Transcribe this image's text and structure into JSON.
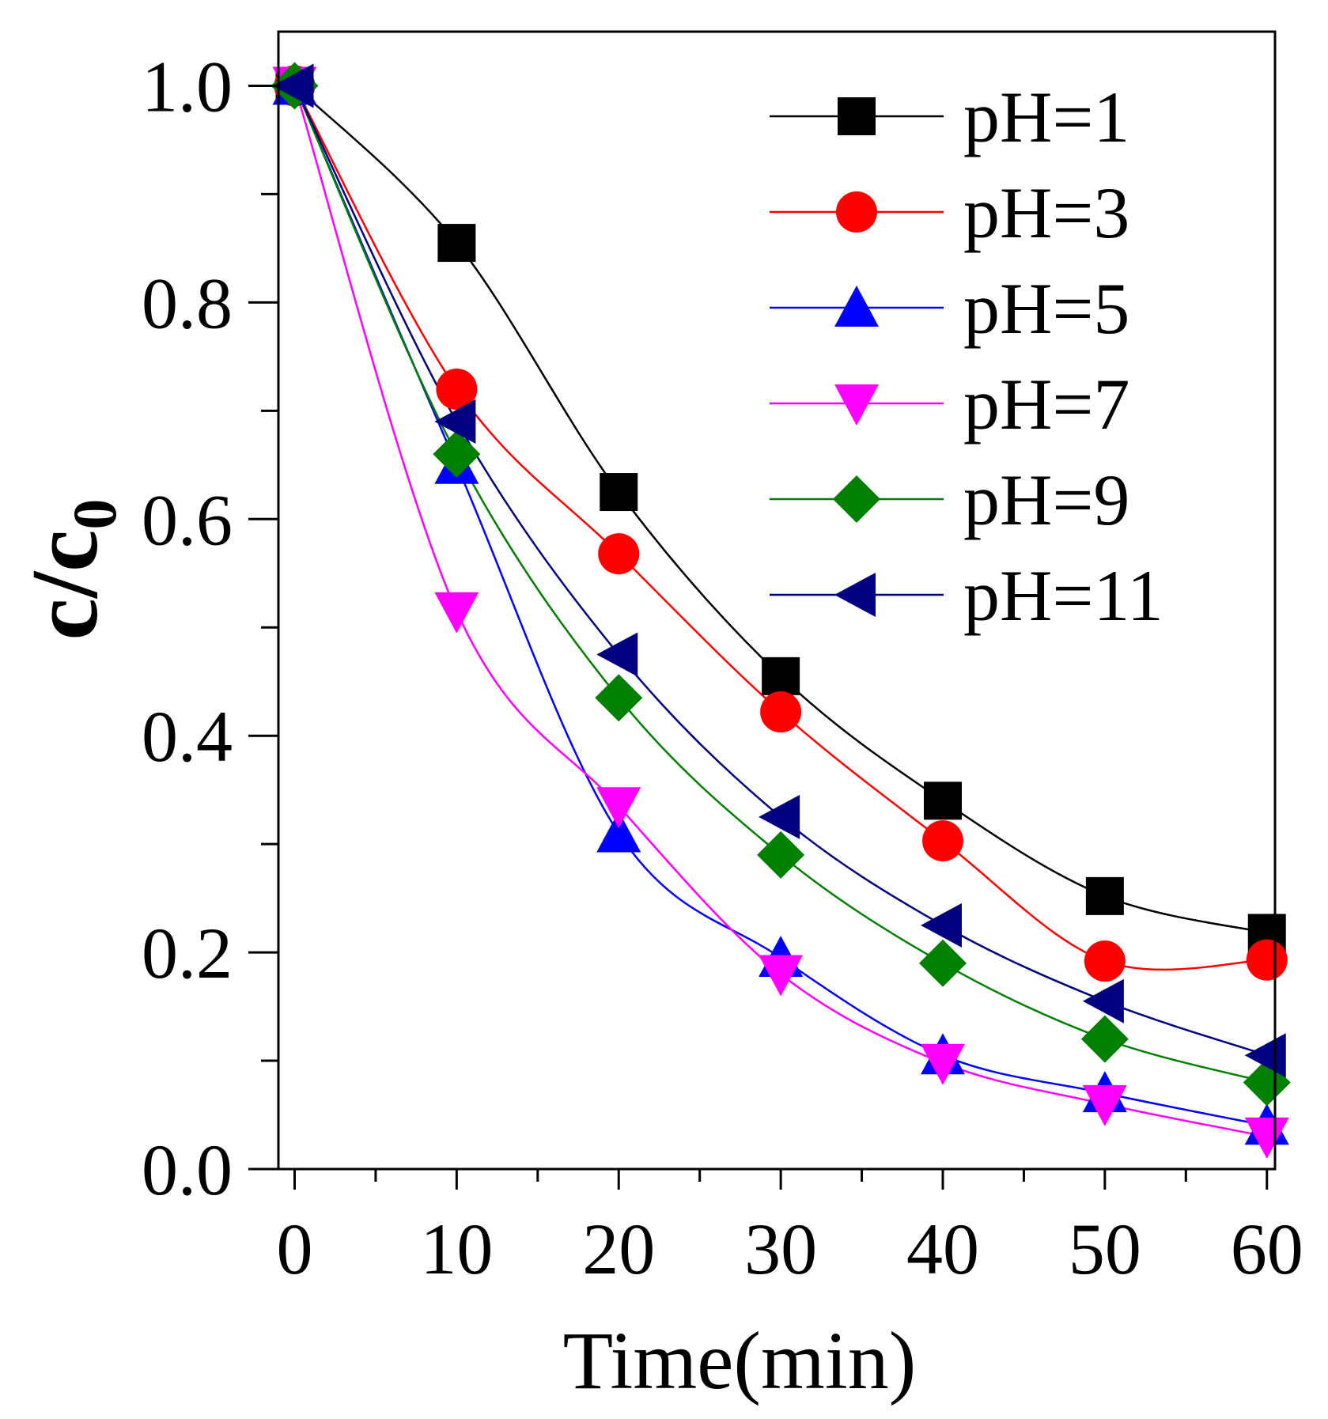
{
  "chart_data": {
    "type": "line",
    "xlabel": "Time(min)",
    "ylabel": "c/c",
    "ylabel_subscript": "0",
    "xlim": [
      -1,
      60.5
    ],
    "ylim": [
      0,
      1.05
    ],
    "x_ticks": [
      0,
      10,
      20,
      30,
      40,
      50,
      60
    ],
    "x_tick_labels": [
      "0",
      "10",
      "20",
      "30",
      "40",
      "50",
      "60"
    ],
    "x_minor_ticks": [
      5,
      15,
      25,
      35,
      45,
      55
    ],
    "y_ticks": [
      0.0,
      0.2,
      0.4,
      0.6,
      0.8,
      1.0
    ],
    "y_tick_labels": [
      "0.0",
      "0.2",
      "0.4",
      "0.6",
      "0.8",
      "1.0"
    ],
    "y_minor_ticks": [
      0.1,
      0.3,
      0.5,
      0.7,
      0.9
    ],
    "grid": false,
    "legend_position": "top-right",
    "x": [
      0,
      10,
      20,
      30,
      40,
      50,
      60
    ],
    "series": [
      {
        "name": "pH=1",
        "color": "#000000",
        "marker": "square",
        "values": [
          1.0,
          0.855,
          0.625,
          0.455,
          0.34,
          0.252,
          0.218
        ]
      },
      {
        "name": "pH=3",
        "color": "#ff0000",
        "marker": "circle",
        "values": [
          1.0,
          0.72,
          0.568,
          0.422,
          0.303,
          0.192,
          0.193
        ]
      },
      {
        "name": "pH=5",
        "color": "#0000ff",
        "marker": "triangle-up",
        "values": [
          1.0,
          0.65,
          0.31,
          0.195,
          0.105,
          0.07,
          0.04
        ]
      },
      {
        "name": "pH=7",
        "color": "#ff00ff",
        "marker": "triangle-down",
        "values": [
          1.0,
          0.515,
          0.335,
          0.18,
          0.098,
          0.06,
          0.03
        ]
      },
      {
        "name": "pH=9",
        "color": "#008000",
        "marker": "diamond",
        "values": [
          1.0,
          0.66,
          0.435,
          0.29,
          0.19,
          0.12,
          0.08
        ]
      },
      {
        "name": "pH=11",
        "color": "#000080",
        "marker": "triangle-left",
        "values": [
          1.0,
          0.69,
          0.475,
          0.325,
          0.225,
          0.155,
          0.105
        ]
      }
    ]
  }
}
